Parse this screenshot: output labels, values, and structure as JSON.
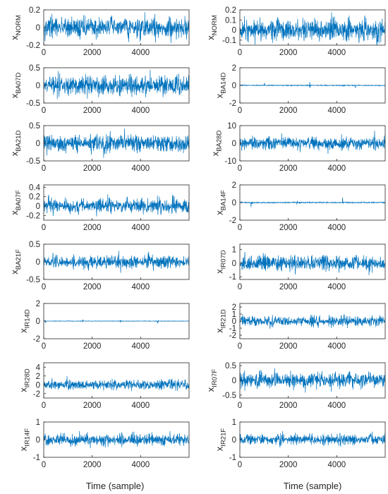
{
  "figure": {
    "xlabel": "Time (sample)",
    "line_color": "#0072BD",
    "axis_color": "#262626"
  },
  "chart_data": [
    {
      "type": "line",
      "ylabel_main": "x",
      "ylabel_sub": "NORM",
      "ylim": [
        -0.2,
        0.2
      ],
      "yticks": [
        -0.2,
        0,
        0.2
      ],
      "xlim": [
        0,
        6000
      ],
      "xticks": [
        0,
        2000,
        4000
      ],
      "amplitude": 0.19,
      "impulse": 0
    },
    {
      "type": "line",
      "ylabel_main": "x",
      "ylabel_sub": "NORM",
      "ylim": [
        -0.15,
        0.2
      ],
      "yticks": [
        -0.1,
        0,
        0.1,
        0.2
      ],
      "xlim": [
        0,
        6000
      ],
      "xticks": [
        0,
        2000,
        4000
      ],
      "amplitude": 0.18,
      "impulse": 0
    },
    {
      "type": "line",
      "ylabel_main": "x",
      "ylabel_sub": "BA07D",
      "ylim": [
        -0.5,
        0.5
      ],
      "yticks": [
        -0.5,
        0,
        0.5
      ],
      "xlim": [
        0,
        6000
      ],
      "xticks": [
        0,
        2000,
        4000
      ],
      "amplitude": 0.45,
      "impulse": 0
    },
    {
      "type": "line",
      "ylabel_main": "x",
      "ylabel_sub": "BA14D",
      "ylim": [
        -2,
        2
      ],
      "yticks": [
        -2,
        0,
        2
      ],
      "xlim": [
        0,
        6000
      ],
      "xticks": [
        0,
        2000,
        4000
      ],
      "amplitude": 0.25,
      "impulse": 1
    },
    {
      "type": "line",
      "ylabel_main": "x",
      "ylabel_sub": "BA21D",
      "ylim": [
        -0.5,
        0.5
      ],
      "yticks": [
        -0.5,
        0,
        0.5
      ],
      "xlim": [
        0,
        6000
      ],
      "xticks": [
        0,
        2000,
        4000
      ],
      "amplitude": 0.4,
      "impulse": 0
    },
    {
      "type": "line",
      "ylabel_main": "x",
      "ylabel_sub": "BA28D",
      "ylim": [
        -10,
        10
      ],
      "yticks": [
        -10,
        0,
        10
      ],
      "xlim": [
        0,
        6000
      ],
      "xticks": [
        0,
        2000,
        4000
      ],
      "amplitude": 6,
      "impulse": 0
    },
    {
      "type": "line",
      "ylabel_main": "x",
      "ylabel_sub": "BA07F",
      "ylim": [
        -0.3,
        0.45
      ],
      "yticks": [
        -0.2,
        0,
        0.2,
        0.4
      ],
      "xlim": [
        0,
        6000
      ],
      "xticks": [
        0,
        2000,
        4000
      ],
      "amplitude": 0.25,
      "impulse": 0
    },
    {
      "type": "line",
      "ylabel_main": "x",
      "ylabel_sub": "BA14F",
      "ylim": [
        -2,
        2
      ],
      "yticks": [
        -2,
        0,
        2
      ],
      "xlim": [
        0,
        6000
      ],
      "xticks": [
        0,
        2000,
        4000
      ],
      "amplitude": 0.3,
      "impulse": 1
    },
    {
      "type": "line",
      "ylabel_main": "x",
      "ylabel_sub": "BA21F",
      "ylim": [
        -0.5,
        0.5
      ],
      "yticks": [
        -0.5,
        0,
        0.5
      ],
      "xlim": [
        0,
        6000
      ],
      "xticks": [
        0,
        2000,
        4000
      ],
      "amplitude": 0.3,
      "impulse": 0
    },
    {
      "type": "line",
      "ylabel_main": "x",
      "ylabel_sub": "IR07D",
      "ylim": [
        -1.2,
        1.4
      ],
      "yticks": [
        -1,
        0,
        1
      ],
      "xlim": [
        0,
        6000
      ],
      "xticks": [
        0,
        2000,
        4000
      ],
      "amplitude": 0.9,
      "impulse": 0
    },
    {
      "type": "line",
      "ylabel_main": "x",
      "ylabel_sub": "IR14D",
      "ylim": [
        -2,
        2
      ],
      "yticks": [
        -2,
        0,
        2
      ],
      "xlim": [
        0,
        6000
      ],
      "xticks": [
        0,
        2000,
        4000
      ],
      "amplitude": 0.15,
      "impulse": 1
    },
    {
      "type": "line",
      "ylabel_main": "x",
      "ylabel_sub": "IR21D",
      "ylim": [
        -2.5,
        2.5
      ],
      "yticks": [
        -2,
        -1,
        0,
        1,
        2
      ],
      "xlim": [
        0,
        6000
      ],
      "xticks": [
        0,
        2000,
        4000
      ],
      "amplitude": 1.2,
      "impulse": 0
    },
    {
      "type": "line",
      "ylabel_main": "x",
      "ylabel_sub": "IR28D",
      "ylim": [
        -3,
        5
      ],
      "yticks": [
        -2,
        0,
        2,
        4
      ],
      "xlim": [
        0,
        6000
      ],
      "xticks": [
        0,
        2000,
        4000
      ],
      "amplitude": 1.8,
      "impulse": 0
    },
    {
      "type": "line",
      "ylabel_main": "x",
      "ylabel_sub": "IR07F",
      "ylim": [
        -0.6,
        0.6
      ],
      "yticks": [
        -0.5,
        0,
        0.5
      ],
      "xlim": [
        0,
        6000
      ],
      "xticks": [
        0,
        2000,
        4000
      ],
      "amplitude": 0.45,
      "impulse": 0
    },
    {
      "type": "line",
      "ylabel_main": "x",
      "ylabel_sub": "IR14F",
      "ylim": [
        -1,
        1
      ],
      "yticks": [
        -1,
        0,
        1
      ],
      "xlim": [
        0,
        6000
      ],
      "xticks": [
        0,
        2000,
        4000
      ],
      "amplitude": 0.55,
      "impulse": 0
    },
    {
      "type": "line",
      "ylabel_main": "x",
      "ylabel_sub": "IR21F",
      "ylim": [
        -1,
        1
      ],
      "yticks": [
        -1,
        0,
        1
      ],
      "xlim": [
        0,
        6000
      ],
      "xticks": [
        0,
        2000,
        4000
      ],
      "amplitude": 0.5,
      "impulse": 0
    }
  ]
}
